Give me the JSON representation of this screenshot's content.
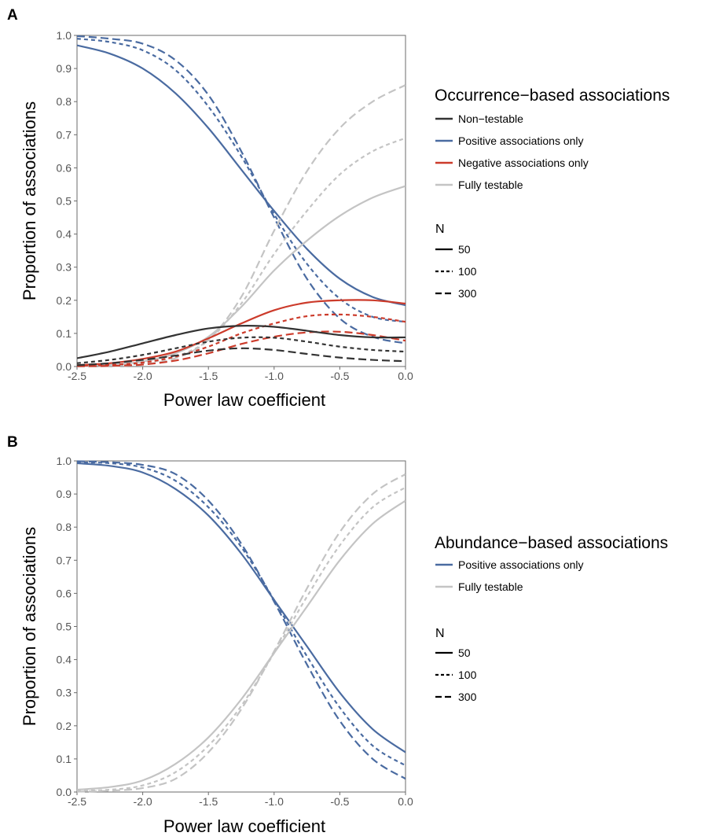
{
  "chart_data": [
    {
      "panel_label": "A",
      "type": "line",
      "xlabel": "Power law coefficient",
      "ylabel": "Proportion of associations",
      "xlim": [
        -2.5,
        0.0
      ],
      "ylim": [
        0.0,
        1.0
      ],
      "xticks": [
        "-2.5",
        "-2.0",
        "-1.5",
        "-1.0",
        "-0.5",
        "0.0"
      ],
      "yticks": [
        "0.0",
        "0.1",
        "0.2",
        "0.3",
        "0.4",
        "0.5",
        "0.6",
        "0.7",
        "0.8",
        "0.9",
        "1.0"
      ],
      "grid": false,
      "legend_title": "Occurrence−based associations",
      "legend_items": [
        {
          "label": "Non−testable",
          "color": "#333333"
        },
        {
          "label": "Positive associations only",
          "color": "#4a6ba1"
        },
        {
          "label": "Negative associations only",
          "color": "#cc3b2b"
        },
        {
          "label": "Fully testable",
          "color": "#c4c4c4"
        }
      ],
      "n_legend_title": "N",
      "n_legend_items": [
        {
          "label": "50",
          "dash": "solid"
        },
        {
          "label": "100",
          "dash": "dotted"
        },
        {
          "label": "300",
          "dash": "dashed"
        }
      ],
      "x": [
        -2.5,
        -2.25,
        -2.0,
        -1.75,
        -1.5,
        -1.25,
        -1.0,
        -0.75,
        -0.5,
        -0.25,
        0.0
      ],
      "series": [
        {
          "group": "Positive associations only",
          "N": "50",
          "color": "#4a6ba1",
          "dash": "solid",
          "values": [
            0.97,
            0.945,
            0.9,
            0.825,
            0.72,
            0.595,
            0.47,
            0.355,
            0.265,
            0.21,
            0.185
          ]
        },
        {
          "group": "Positive associations only",
          "N": "100",
          "color": "#4a6ba1",
          "dash": "dotted",
          "values": [
            0.99,
            0.98,
            0.955,
            0.895,
            0.785,
            0.635,
            0.46,
            0.31,
            0.205,
            0.15,
            0.135
          ]
        },
        {
          "group": "Positive associations only",
          "N": "300",
          "color": "#4a6ba1",
          "dash": "dashed",
          "values": [
            0.998,
            0.99,
            0.975,
            0.925,
            0.82,
            0.65,
            0.45,
            0.265,
            0.145,
            0.09,
            0.07
          ]
        },
        {
          "group": "Fully testable",
          "N": "50",
          "color": "#c4c4c4",
          "dash": "solid",
          "values": [
            0.002,
            0.005,
            0.015,
            0.04,
            0.09,
            0.18,
            0.29,
            0.38,
            0.455,
            0.51,
            0.545
          ]
        },
        {
          "group": "Fully testable",
          "N": "100",
          "color": "#c4c4c4",
          "dash": "dotted",
          "values": [
            0.001,
            0.003,
            0.01,
            0.03,
            0.08,
            0.19,
            0.34,
            0.47,
            0.58,
            0.65,
            0.69
          ]
        },
        {
          "group": "Fully testable",
          "N": "300",
          "color": "#c4c4c4",
          "dash": "dashed",
          "values": [
            0.0,
            0.001,
            0.006,
            0.025,
            0.08,
            0.21,
            0.41,
            0.59,
            0.72,
            0.8,
            0.85
          ]
        },
        {
          "group": "Negative associations only",
          "N": "50",
          "color": "#cc3b2b",
          "dash": "solid",
          "values": [
            0.004,
            0.01,
            0.023,
            0.045,
            0.085,
            0.13,
            0.17,
            0.193,
            0.2,
            0.2,
            0.19
          ]
        },
        {
          "group": "Negative associations only",
          "N": "100",
          "color": "#cc3b2b",
          "dash": "dotted",
          "values": [
            0.002,
            0.005,
            0.012,
            0.03,
            0.06,
            0.1,
            0.13,
            0.152,
            0.157,
            0.15,
            0.135
          ]
        },
        {
          "group": "Negative associations only",
          "N": "300",
          "color": "#cc3b2b",
          "dash": "dashed",
          "values": [
            0.001,
            0.002,
            0.006,
            0.018,
            0.04,
            0.068,
            0.09,
            0.103,
            0.105,
            0.095,
            0.078
          ]
        },
        {
          "group": "Non−testable",
          "N": "50",
          "color": "#333333",
          "dash": "solid",
          "values": [
            0.025,
            0.045,
            0.07,
            0.095,
            0.115,
            0.123,
            0.12,
            0.108,
            0.095,
            0.088,
            0.088
          ]
        },
        {
          "group": "Non−testable",
          "N": "100",
          "color": "#333333",
          "dash": "dotted",
          "values": [
            0.01,
            0.02,
            0.035,
            0.055,
            0.075,
            0.087,
            0.087,
            0.075,
            0.06,
            0.05,
            0.045
          ]
        },
        {
          "group": "Non−testable",
          "N": "300",
          "color": "#333333",
          "dash": "dashed",
          "values": [
            0.004,
            0.01,
            0.02,
            0.033,
            0.048,
            0.055,
            0.05,
            0.038,
            0.027,
            0.02,
            0.016
          ]
        }
      ]
    },
    {
      "panel_label": "B",
      "type": "line",
      "xlabel": "Power law coefficient",
      "ylabel": "Proportion of associations",
      "xlim": [
        -2.5,
        0.0
      ],
      "ylim": [
        0.0,
        1.0
      ],
      "xticks": [
        "-2.5",
        "-2.0",
        "-1.5",
        "-1.0",
        "-0.5",
        "0.0"
      ],
      "yticks": [
        "0.0",
        "0.1",
        "0.2",
        "0.3",
        "0.4",
        "0.5",
        "0.6",
        "0.7",
        "0.8",
        "0.9",
        "1.0"
      ],
      "grid": false,
      "legend_title": "Abundance−based associations",
      "legend_items": [
        {
          "label": "Positive associations only",
          "color": "#4a6ba1"
        },
        {
          "label": "Fully testable",
          "color": "#c4c4c4"
        }
      ],
      "n_legend_title": "N",
      "n_legend_items": [
        {
          "label": "50",
          "dash": "solid"
        },
        {
          "label": "100",
          "dash": "dotted"
        },
        {
          "label": "300",
          "dash": "dashed"
        }
      ],
      "x": [
        -2.5,
        -2.25,
        -2.0,
        -1.75,
        -1.5,
        -1.25,
        -1.0,
        -0.75,
        -0.5,
        -0.25,
        0.0
      ],
      "series": [
        {
          "group": "Positive associations only",
          "N": "50",
          "color": "#4a6ba1",
          "dash": "solid",
          "values": [
            0.993,
            0.985,
            0.965,
            0.915,
            0.835,
            0.72,
            0.58,
            0.44,
            0.3,
            0.19,
            0.12
          ]
        },
        {
          "group": "Positive associations only",
          "N": "100",
          "color": "#4a6ba1",
          "dash": "dotted",
          "values": [
            0.996,
            0.993,
            0.98,
            0.94,
            0.86,
            0.74,
            0.58,
            0.41,
            0.255,
            0.14,
            0.08
          ]
        },
        {
          "group": "Positive associations only",
          "N": "300",
          "color": "#4a6ba1",
          "dash": "dashed",
          "values": [
            0.999,
            0.996,
            0.988,
            0.96,
            0.88,
            0.75,
            0.575,
            0.385,
            0.215,
            0.1,
            0.04
          ]
        },
        {
          "group": "Fully testable",
          "N": "50",
          "color": "#c4c4c4",
          "dash": "solid",
          "values": [
            0.007,
            0.015,
            0.035,
            0.085,
            0.165,
            0.28,
            0.42,
            0.56,
            0.7,
            0.81,
            0.88
          ]
        },
        {
          "group": "Fully testable",
          "N": "100",
          "color": "#c4c4c4",
          "dash": "dotted",
          "values": [
            0.004,
            0.007,
            0.02,
            0.06,
            0.14,
            0.26,
            0.42,
            0.59,
            0.745,
            0.86,
            0.92
          ]
        },
        {
          "group": "Fully testable",
          "N": "300",
          "color": "#c4c4c4",
          "dash": "dashed",
          "values": [
            0.001,
            0.004,
            0.012,
            0.04,
            0.12,
            0.25,
            0.425,
            0.615,
            0.785,
            0.9,
            0.96
          ]
        }
      ]
    }
  ]
}
